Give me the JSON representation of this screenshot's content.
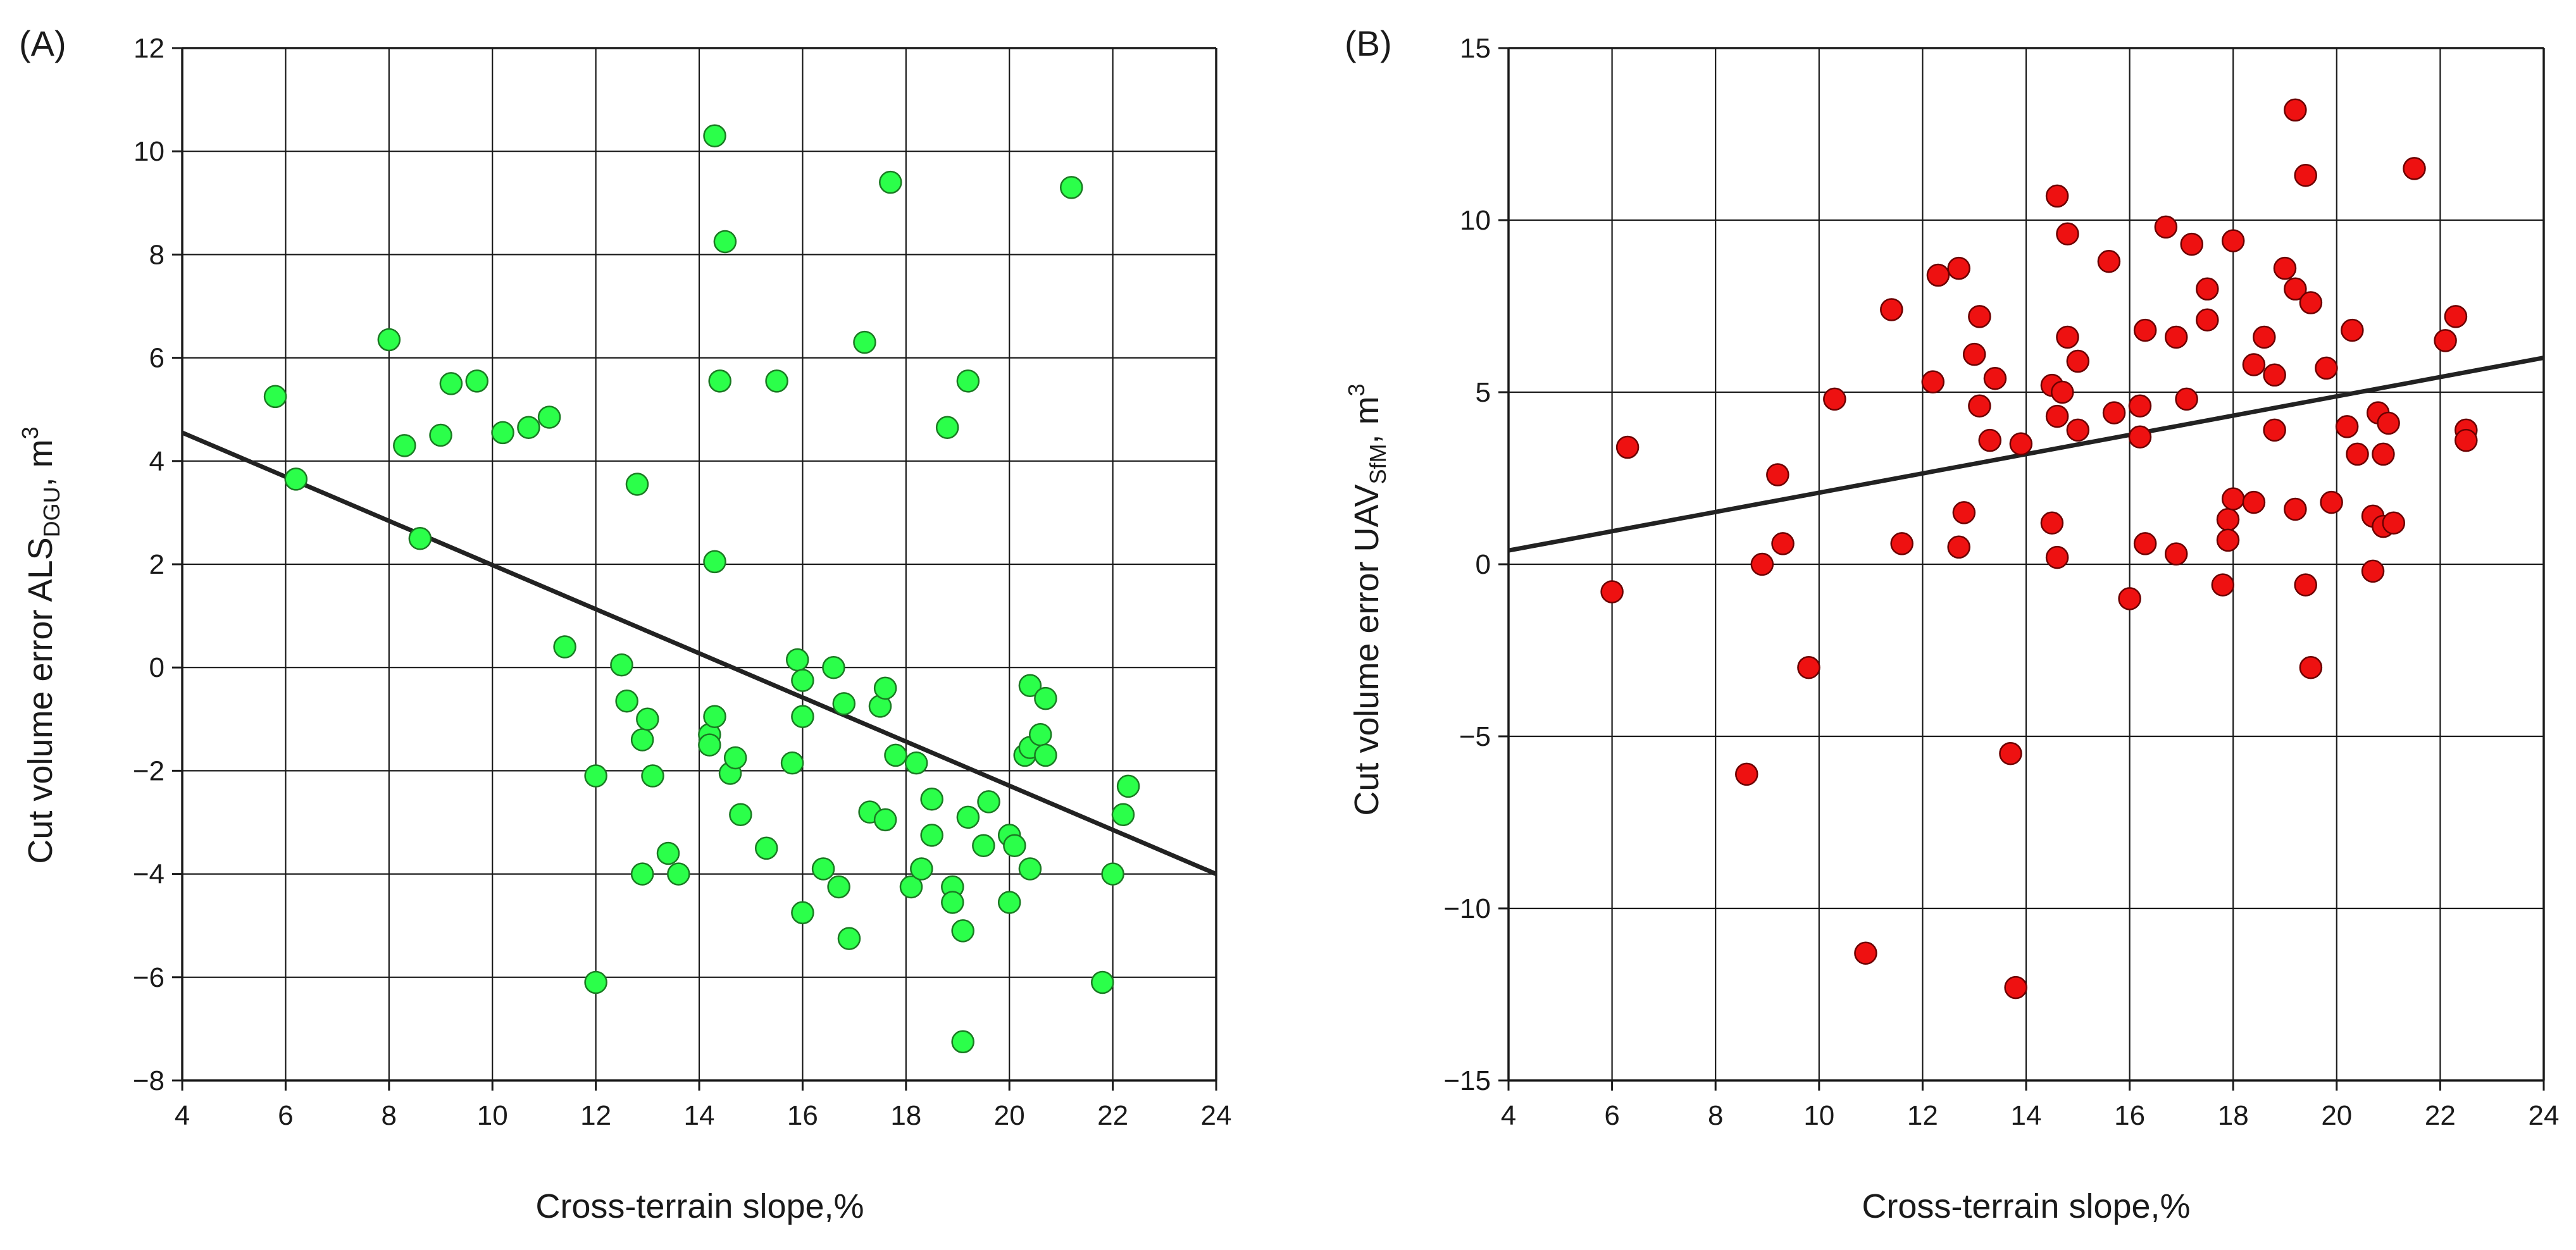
{
  "chart_data": [
    {
      "type": "scatter",
      "panel_label": "(A)",
      "xlabel": "Cross-terrain slope,%",
      "ylabel": {
        "main": "Cut volume error ALS",
        "sub": "DGU",
        "unit": ", m",
        "sup": "3"
      },
      "xlim": [
        4,
        24
      ],
      "ylim": [
        -8,
        12
      ],
      "xticks": [
        4,
        6,
        8,
        10,
        12,
        14,
        16,
        18,
        20,
        22,
        24
      ],
      "yticks": [
        -8,
        -6,
        -4,
        -2,
        0,
        2,
        4,
        6,
        8,
        10,
        12
      ],
      "xtick_labels": [
        "4",
        "6",
        "8",
        "10",
        "12",
        "14",
        "16",
        "18",
        "20",
        "22",
        "24"
      ],
      "ytick_labels": [
        "−8",
        "−6",
        "−4",
        "−2",
        "0",
        "2",
        "4",
        "6",
        "8",
        "10",
        "12"
      ],
      "grid": true,
      "marker_color": "#2bff4a",
      "marker_edge": "#1a7a22",
      "trend_line": {
        "x": [
          4,
          24
        ],
        "y": [
          4.55,
          -4.0
        ]
      },
      "points": [
        [
          5.8,
          5.25
        ],
        [
          6.2,
          3.65
        ],
        [
          8.0,
          6.35
        ],
        [
          8.3,
          4.3
        ],
        [
          8.6,
          2.5
        ],
        [
          9.0,
          4.5
        ],
        [
          9.2,
          5.5
        ],
        [
          9.7,
          5.55
        ],
        [
          10.2,
          4.55
        ],
        [
          10.7,
          4.65
        ],
        [
          11.1,
          4.85
        ],
        [
          11.4,
          0.4
        ],
        [
          12.0,
          -2.1
        ],
        [
          12.0,
          -6.1
        ],
        [
          12.5,
          0.05
        ],
        [
          12.6,
          -0.65
        ],
        [
          12.8,
          3.55
        ],
        [
          12.9,
          -1.4
        ],
        [
          12.9,
          -4.0
        ],
        [
          13.0,
          -1.0
        ],
        [
          13.1,
          -2.1
        ],
        [
          13.4,
          -3.6
        ],
        [
          13.6,
          -4.0
        ],
        [
          14.2,
          -1.3
        ],
        [
          14.2,
          -1.5
        ],
        [
          14.3,
          10.3
        ],
        [
          14.3,
          2.05
        ],
        [
          14.3,
          -0.95
        ],
        [
          14.4,
          5.55
        ],
        [
          14.5,
          8.25
        ],
        [
          14.6,
          -2.05
        ],
        [
          14.7,
          -1.75
        ],
        [
          14.8,
          -2.85
        ],
        [
          15.3,
          -3.5
        ],
        [
          15.5,
          5.55
        ],
        [
          15.8,
          -1.85
        ],
        [
          15.9,
          0.15
        ],
        [
          16.0,
          -0.25
        ],
        [
          16.0,
          -0.95
        ],
        [
          16.0,
          -4.75
        ],
        [
          16.4,
          -3.9
        ],
        [
          16.6,
          0.0
        ],
        [
          16.7,
          -4.25
        ],
        [
          16.8,
          -0.7
        ],
        [
          16.9,
          -5.25
        ],
        [
          17.2,
          6.3
        ],
        [
          17.3,
          -2.8
        ],
        [
          17.5,
          -0.75
        ],
        [
          17.6,
          -0.4
        ],
        [
          17.6,
          -2.95
        ],
        [
          17.7,
          9.4
        ],
        [
          17.8,
          -1.7
        ],
        [
          18.1,
          -4.25
        ],
        [
          18.2,
          -1.85
        ],
        [
          18.3,
          -3.9
        ],
        [
          18.5,
          -2.55
        ],
        [
          18.5,
          -3.25
        ],
        [
          18.8,
          4.65
        ],
        [
          18.9,
          -4.25
        ],
        [
          18.9,
          -4.55
        ],
        [
          19.1,
          -5.1
        ],
        [
          19.1,
          -7.25
        ],
        [
          19.2,
          5.55
        ],
        [
          19.2,
          -2.9
        ],
        [
          19.5,
          -3.45
        ],
        [
          19.6,
          -2.6
        ],
        [
          20.0,
          -3.25
        ],
        [
          20.0,
          -4.55
        ],
        [
          20.1,
          -3.45
        ],
        [
          20.3,
          -1.7
        ],
        [
          20.4,
          -1.55
        ],
        [
          20.4,
          -3.9
        ],
        [
          20.4,
          -0.35
        ],
        [
          20.6,
          -1.3
        ],
        [
          20.7,
          -1.7
        ],
        [
          20.7,
          -0.6
        ],
        [
          21.2,
          9.3
        ],
        [
          21.8,
          -6.1
        ],
        [
          22.0,
          -4.0
        ],
        [
          22.2,
          -2.85
        ],
        [
          22.3,
          -2.3
        ]
      ]
    },
    {
      "type": "scatter",
      "panel_label": "(B)",
      "xlabel": "Cross-terrain slope,%",
      "ylabel": {
        "main": "Cut volume error UAV",
        "sub": "SfM",
        "unit": ", m",
        "sup": "3"
      },
      "xlim": [
        4,
        24
      ],
      "ylim": [
        -15,
        15
      ],
      "xticks": [
        4,
        6,
        8,
        10,
        12,
        14,
        16,
        18,
        20,
        22,
        24
      ],
      "yticks": [
        -15,
        -10,
        -5,
        0,
        5,
        10,
        15
      ],
      "xtick_labels": [
        "4",
        "6",
        "8",
        "10",
        "12",
        "14",
        "16",
        "18",
        "20",
        "22",
        "24"
      ],
      "ytick_labels": [
        "−15",
        "−10",
        "−5",
        "0",
        "5",
        "10",
        "15"
      ],
      "grid": true,
      "marker_color": "#ee1111",
      "marker_edge": "#6a0000",
      "trend_line": {
        "x": [
          4,
          24
        ],
        "y": [
          0.4,
          6.0
        ]
      },
      "points": [
        [
          6.0,
          -0.8
        ],
        [
          6.3,
          3.4
        ],
        [
          8.6,
          -6.1
        ],
        [
          8.9,
          0.0
        ],
        [
          9.2,
          2.6
        ],
        [
          9.3,
          0.6
        ],
        [
          9.8,
          -3.0
        ],
        [
          10.3,
          4.8
        ],
        [
          10.9,
          -11.3
        ],
        [
          11.4,
          7.4
        ],
        [
          11.6,
          0.6
        ],
        [
          12.2,
          5.3
        ],
        [
          12.3,
          8.4
        ],
        [
          12.7,
          8.6
        ],
        [
          12.7,
          0.5
        ],
        [
          12.8,
          1.5
        ],
        [
          13.0,
          6.1
        ],
        [
          13.1,
          7.2
        ],
        [
          13.1,
          4.6
        ],
        [
          13.3,
          3.6
        ],
        [
          13.4,
          5.4
        ],
        [
          13.7,
          -5.5
        ],
        [
          13.8,
          -12.3
        ],
        [
          13.9,
          3.5
        ],
        [
          14.5,
          5.2
        ],
        [
          14.5,
          1.2
        ],
        [
          14.6,
          10.7
        ],
        [
          14.6,
          4.3
        ],
        [
          14.6,
          0.2
        ],
        [
          14.7,
          5.0
        ],
        [
          14.8,
          9.6
        ],
        [
          14.8,
          6.6
        ],
        [
          15.0,
          5.9
        ],
        [
          15.0,
          3.9
        ],
        [
          15.6,
          8.8
        ],
        [
          15.7,
          4.4
        ],
        [
          16.0,
          -1.0
        ],
        [
          16.2,
          4.6
        ],
        [
          16.2,
          3.7
        ],
        [
          16.3,
          6.8
        ],
        [
          16.3,
          0.6
        ],
        [
          16.7,
          9.8
        ],
        [
          16.9,
          6.6
        ],
        [
          16.9,
          0.3
        ],
        [
          17.1,
          4.8
        ],
        [
          17.2,
          9.3
        ],
        [
          17.5,
          7.1
        ],
        [
          17.5,
          8.0
        ],
        [
          17.8,
          -0.6
        ],
        [
          17.9,
          1.3
        ],
        [
          17.9,
          0.7
        ],
        [
          18.0,
          9.4
        ],
        [
          18.0,
          1.9
        ],
        [
          18.4,
          1.8
        ],
        [
          18.4,
          5.8
        ],
        [
          18.6,
          6.6
        ],
        [
          18.8,
          3.9
        ],
        [
          18.8,
          5.5
        ],
        [
          19.0,
          8.6
        ],
        [
          19.2,
          13.2
        ],
        [
          19.2,
          8.0
        ],
        [
          19.2,
          1.6
        ],
        [
          19.4,
          11.3
        ],
        [
          19.4,
          -0.6
        ],
        [
          19.5,
          7.6
        ],
        [
          19.5,
          -3.0
        ],
        [
          19.8,
          5.7
        ],
        [
          19.9,
          1.8
        ],
        [
          20.2,
          4.0
        ],
        [
          20.3,
          6.8
        ],
        [
          20.4,
          3.2
        ],
        [
          20.7,
          1.4
        ],
        [
          20.7,
          -0.2
        ],
        [
          20.8,
          4.4
        ],
        [
          20.9,
          3.2
        ],
        [
          20.9,
          1.1
        ],
        [
          21.0,
          4.1
        ],
        [
          21.1,
          1.2
        ],
        [
          21.5,
          11.5
        ],
        [
          22.1,
          6.5
        ],
        [
          22.3,
          7.2
        ],
        [
          22.5,
          3.9
        ],
        [
          22.5,
          3.6
        ]
      ]
    }
  ]
}
